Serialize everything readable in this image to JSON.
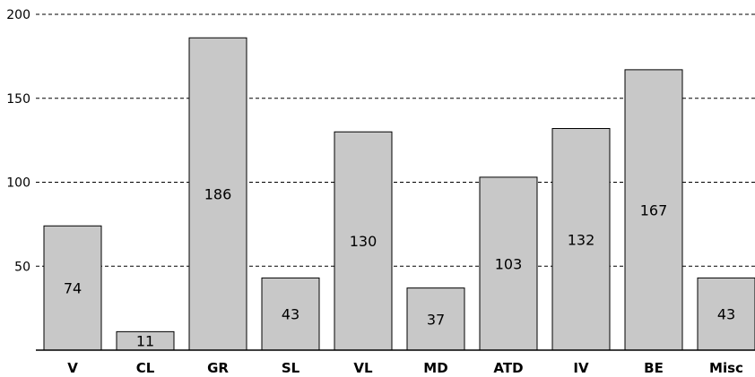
{
  "chart_data": {
    "type": "bar",
    "categories": [
      "V",
      "CL",
      "GR",
      "SL",
      "VL",
      "MD",
      "ATD",
      "IV",
      "BE",
      "Misc"
    ],
    "values": [
      74,
      11,
      186,
      43,
      130,
      37,
      103,
      132,
      167,
      43
    ],
    "data_labels": [
      "74",
      "11",
      "186",
      "43",
      "130",
      "37",
      "103",
      "132",
      "167",
      "43"
    ],
    "yticks": [
      "50",
      "100",
      "150",
      "200"
    ],
    "ytick_values": [
      50,
      100,
      150,
      200
    ],
    "ylim": [
      0,
      200
    ],
    "grid": true,
    "bar_color": "#c8c8c8"
  }
}
